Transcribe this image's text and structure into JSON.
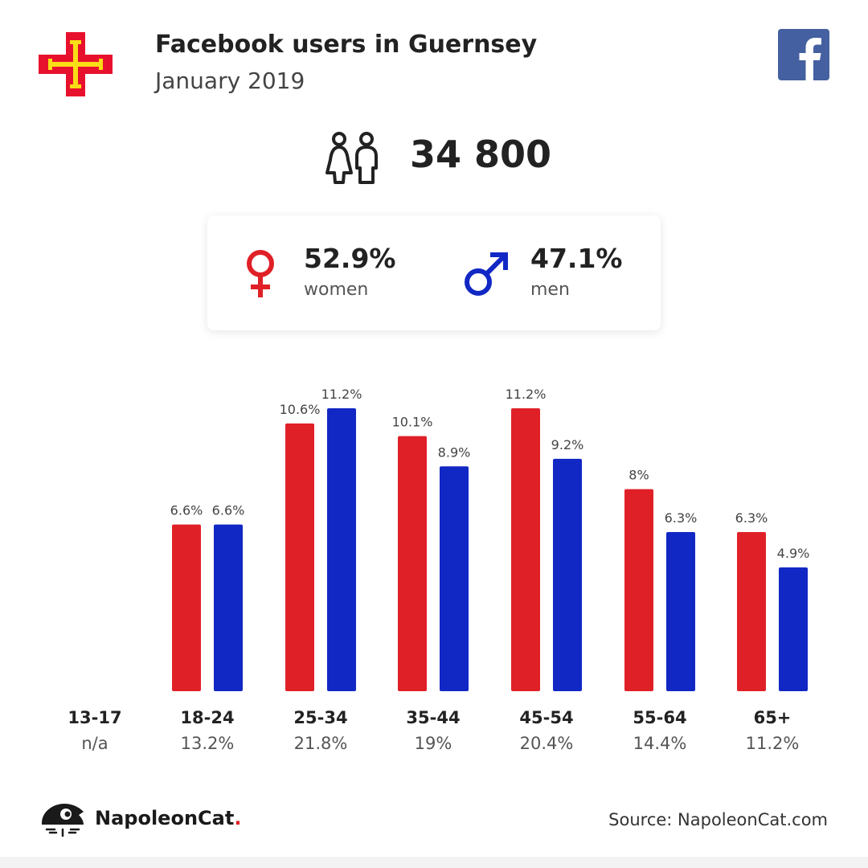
{
  "header": {
    "title": "Facebook users in Guernsey",
    "subtitle": "January 2019",
    "flag_icon": "guernsey-flag-icon",
    "platform_icon": "facebook-icon"
  },
  "summary": {
    "total_users": "34 800",
    "users_icon": "users-icon"
  },
  "gender": {
    "women": {
      "percent": "52.9%",
      "label": "women",
      "icon": "female-symbol-icon",
      "color": "#e02027"
    },
    "men": {
      "percent": "47.1%",
      "label": "men",
      "icon": "male-symbol-icon",
      "color": "#1128c4"
    }
  },
  "chart_data": {
    "type": "bar",
    "categories": [
      "13-17",
      "18-24",
      "25-34",
      "35-44",
      "45-54",
      "55-64",
      "65+"
    ],
    "category_totals": [
      "n/a",
      "13.2%",
      "21.8%",
      "19%",
      "20.4%",
      "14.4%",
      "11.2%"
    ],
    "series": [
      {
        "values": [
          null,
          6.6,
          10.6,
          10.1,
          11.2,
          8,
          6.3
        ],
        "labels": [
          "",
          "6.6%",
          "10.6%",
          "10.1%",
          "11.2%",
          "8%",
          "6.3%"
        ],
        "color": "#e02027"
      },
      {
        "values": [
          null,
          6.6,
          11.2,
          8.9,
          9.2,
          6.3,
          4.9
        ],
        "labels": [
          "",
          "6.6%",
          "11.2%",
          "8.9%",
          "9.2%",
          "6.3%",
          "4.9%"
        ],
        "color": "#1128c4"
      }
    ],
    "ylim": [
      0,
      11.2
    ],
    "grid": false,
    "legend": "none"
  },
  "footer": {
    "brand_name": "NapoleonCat",
    "brand_dot": ".",
    "brand_icon": "napoleoncat-logo-icon",
    "source": "Source: NapoleonCat.com"
  }
}
